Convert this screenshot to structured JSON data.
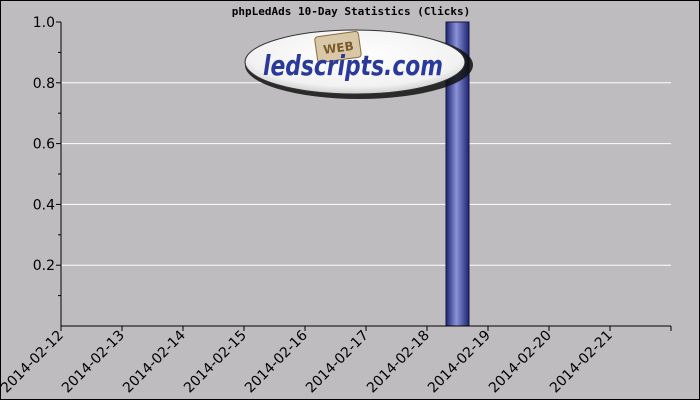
{
  "chart_data": {
    "type": "bar",
    "title": "phpLedAds 10-Day Statistics (Clicks)",
    "xlabel": "",
    "ylabel": "",
    "categories": [
      "2014-02-12",
      "2014-02-13",
      "2014-02-14",
      "2014-02-15",
      "2014-02-16",
      "2014-02-17",
      "2014-02-18",
      "2014-02-19",
      "2014-02-20",
      "2014-02-21"
    ],
    "values": [
      0,
      0,
      0,
      0,
      0,
      0,
      1,
      0,
      0,
      0
    ],
    "ylim": [
      0,
      1.0
    ],
    "yticks": [
      "0.2",
      "0.4",
      "0.6",
      "0.8",
      "1.0"
    ],
    "grid": true,
    "bar_color": "#2b3490",
    "background_color": "#bfbcbf"
  },
  "watermark": {
    "text": "ledscripts.com",
    "badge": "WEB"
  }
}
